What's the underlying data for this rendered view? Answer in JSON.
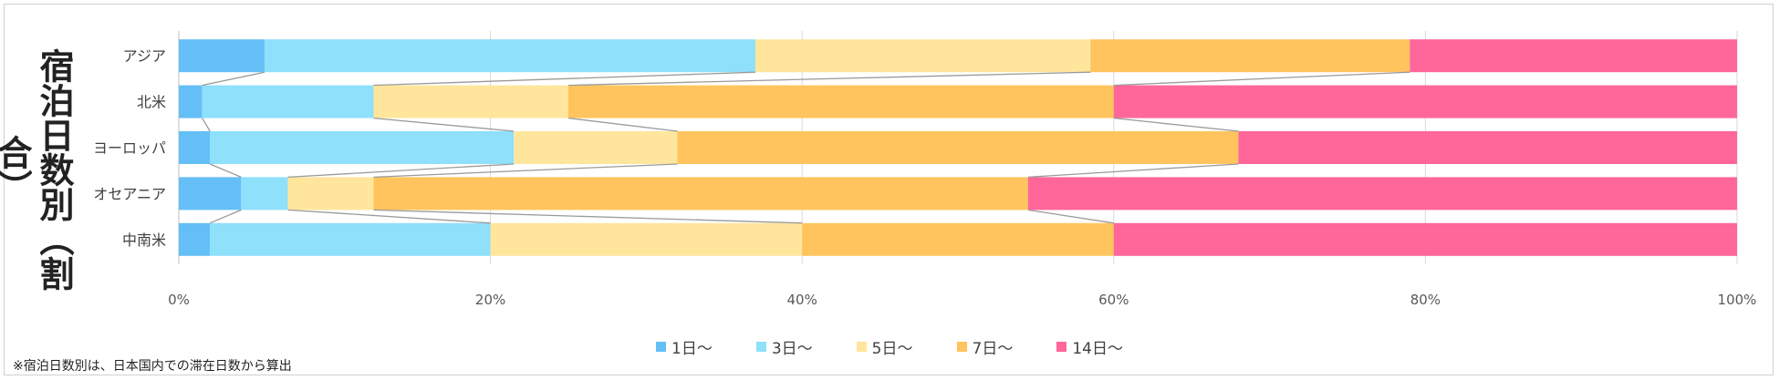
{
  "side_title": "宿泊日数別（割合）",
  "footnote": "※宿泊日数別は、日本国内での滞在日数から算出",
  "chart_data": {
    "type": "bar",
    "orientation": "horizontal",
    "stacked": "percent",
    "categories": [
      "アジア",
      "北米",
      "ヨーロッパ",
      "オセアニア",
      "中南米"
    ],
    "series": [
      {
        "name": "1日～",
        "color": "#64bff7",
        "values": [
          5.5,
          1.5,
          2.0,
          4.0,
          2.0
        ]
      },
      {
        "name": "3日～",
        "color": "#8ee0fb",
        "values": [
          31.5,
          11.0,
          19.5,
          3.0,
          18.0
        ]
      },
      {
        "name": "5日～",
        "color": "#ffe69c",
        "values": [
          21.5,
          12.5,
          10.5,
          5.5,
          20.0
        ]
      },
      {
        "name": "7日～",
        "color": "#ffc45e",
        "values": [
          20.5,
          35.0,
          36.0,
          42.0,
          20.0
        ]
      },
      {
        "name": "14日～",
        "color": "#ff6699",
        "values": [
          21.0,
          40.0,
          32.0,
          45.5,
          40.0
        ]
      }
    ],
    "xticks": [
      "0%",
      "20%",
      "40%",
      "60%",
      "80%",
      "100%"
    ],
    "xlim": [
      0,
      100
    ],
    "grid": true,
    "series_lines": true,
    "legend": "bottom"
  }
}
